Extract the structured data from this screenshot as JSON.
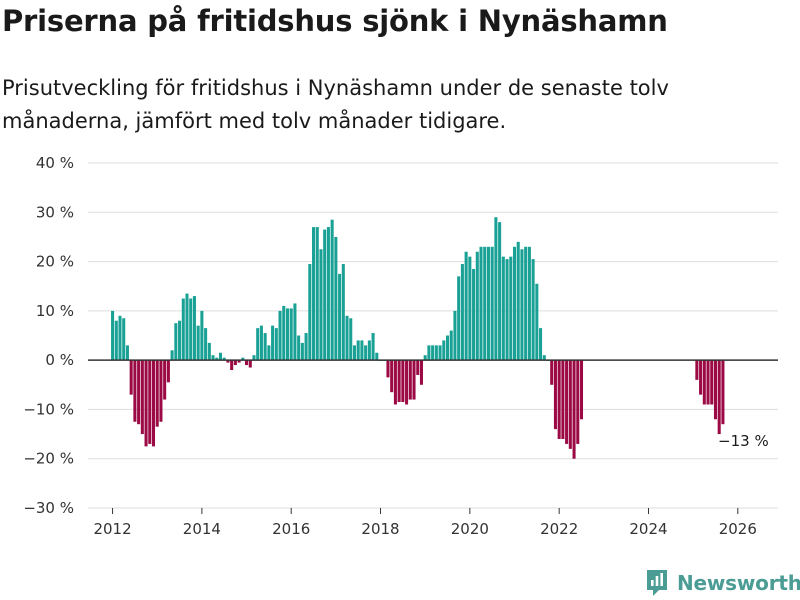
{
  "header": {
    "title": "Priserna på fritidshus sjönk i Nynäshamn",
    "subtitle": "Prisutveckling för fritidshus i Nynäshamn under de senaste tolv månaderna, jämfört med tolv månader tidigare."
  },
  "brand": {
    "name": "Newsworthy",
    "icon": "newsworthy-logo-icon",
    "color": "#4a9c94"
  },
  "chart_data": {
    "type": "bar",
    "title": "Priserna på fritidshus sjönk i Nynäshamn",
    "xlabel": "",
    "ylabel": "",
    "ylim": [
      -30,
      40
    ],
    "xlim": [
      2011.45,
      2026.9
    ],
    "y_ticks": [
      40,
      30,
      20,
      10,
      0,
      -10,
      -20,
      -30
    ],
    "y_tick_labels": [
      "40 %",
      "30 %",
      "20 %",
      "10 %",
      "0 %",
      "−10 %",
      "−20 %",
      "−30 %"
    ],
    "x_ticks": [
      2012,
      2014,
      2016,
      2018,
      2020,
      2022,
      2024,
      2026
    ],
    "x_tick_labels": [
      "2012",
      "2014",
      "2016",
      "2018",
      "2020",
      "2022",
      "2024",
      "2026"
    ],
    "positive_color": "#1aa195",
    "negative_color": "#9b0a44",
    "grid": true,
    "annotation": {
      "text": "−13 %",
      "x": 2026.17,
      "y": -13
    },
    "series": [
      {
        "name": "Prisutveckling",
        "start": 2012.0,
        "step": 0.0833333,
        "values": [
          10,
          8,
          9,
          8.5,
          3,
          -7,
          -12.5,
          -13,
          -15,
          -17.5,
          -17,
          -17.5,
          -13.5,
          -12.5,
          -8,
          -4.5,
          2,
          7.5,
          8,
          12.5,
          13.5,
          12.5,
          13,
          7,
          10,
          6.5,
          3.5,
          1,
          0.5,
          1.5,
          0.5,
          -0.5,
          -2,
          -1,
          -0.5,
          0.5,
          -1,
          -1.5,
          1,
          6.5,
          7,
          5.5,
          3,
          7,
          6.5,
          10,
          11,
          10.5,
          10.5,
          11.5,
          5,
          3.5,
          5.5,
          19.5,
          27,
          27,
          22.5,
          26.5,
          27,
          28.5,
          25,
          17.5,
          19.5,
          9,
          8.5,
          3,
          4,
          4,
          3,
          4,
          5.5,
          1.5,
          0,
          0,
          -3.5,
          -6.5,
          -9,
          -8.5,
          -8.5,
          -9,
          -8,
          -8,
          -3,
          -5,
          1,
          3,
          3,
          3,
          3,
          4,
          5,
          6,
          10,
          17,
          19.5,
          22,
          21,
          18.5,
          22,
          23,
          23,
          23,
          23,
          29,
          28,
          21,
          20.5,
          21,
          23,
          24,
          22.5,
          23,
          23,
          20.5,
          15.5,
          6.5,
          1,
          0,
          -5,
          -14,
          -16,
          -16,
          -17,
          -18,
          -20,
          -17,
          -12,
          null,
          null,
          null,
          null,
          null,
          null,
          null,
          null,
          null,
          null,
          null,
          null,
          null,
          null,
          null,
          null,
          null,
          null,
          null,
          null,
          null,
          null,
          null,
          null,
          null,
          null,
          null,
          null,
          null,
          null,
          -4,
          -7,
          -9,
          -9,
          -9,
          -12,
          -15,
          -13
        ]
      }
    ]
  }
}
